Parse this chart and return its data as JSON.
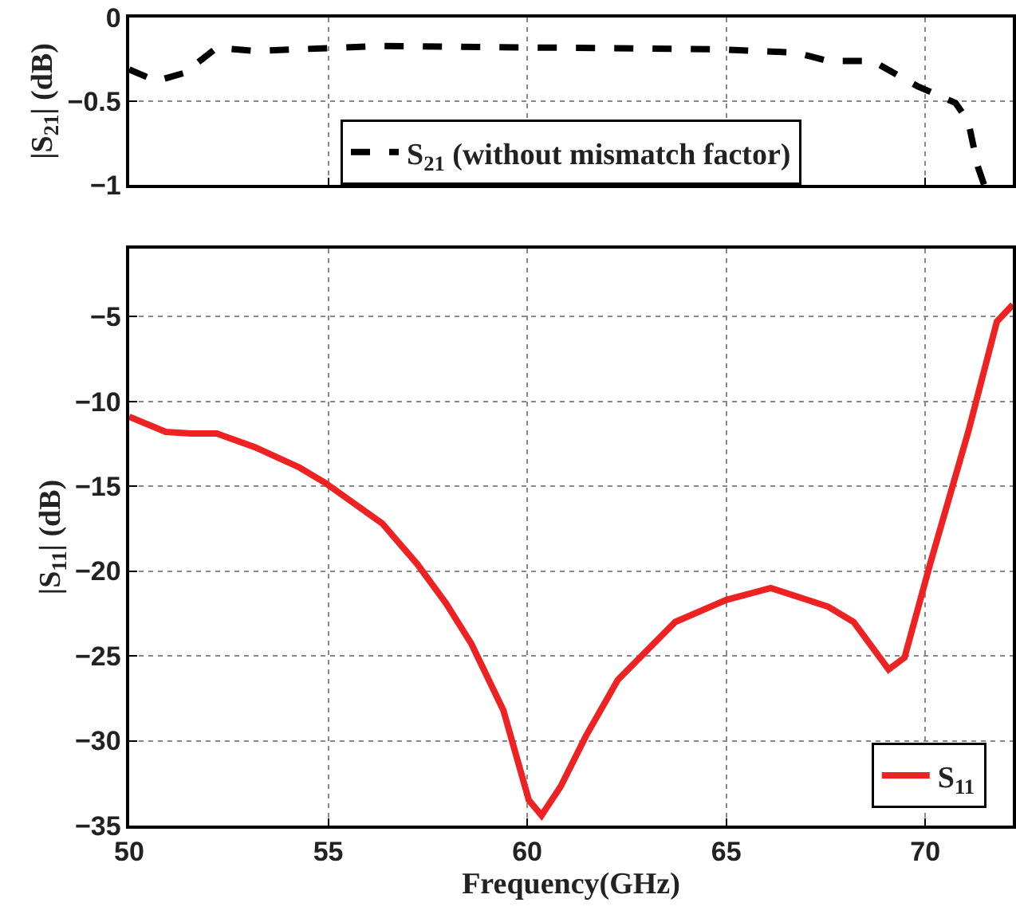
{
  "chart_data": [
    {
      "type": "line",
      "ylabel": "|S$_{21}$| (dB)",
      "xlim": [
        50,
        72.2
      ],
      "xticks": [
        50,
        55,
        60,
        65,
        70
      ],
      "ylim": [
        -1,
        0
      ],
      "yticks": [
        -1,
        -0.5,
        0
      ],
      "grid": true,
      "legend": "bottom",
      "tick_labels": "y",
      "series": [
        {
          "name": "S$_{21}$ (without mismatch factor)",
          "color": "#000000",
          "line_style": "dashed",
          "x": [
            50,
            50.68,
            51.4,
            52.2,
            53.16,
            56.36,
            64.84,
            66.76,
            67.56,
            68.68,
            69.8,
            70.76,
            71.08,
            71.32,
            71.48
          ],
          "values": [
            -0.31,
            -0.38,
            -0.33,
            -0.18,
            -0.2,
            -0.17,
            -0.19,
            -0.21,
            -0.26,
            -0.26,
            -0.41,
            -0.51,
            -0.62,
            -0.89,
            -1.0
          ]
        }
      ]
    },
    {
      "type": "line",
      "xlabel": "Frequency(GHz)",
      "ylabel": "|S$_{11}$| (dB)",
      "xlim": [
        50,
        72.2
      ],
      "xticks": [
        50,
        55,
        60,
        65,
        70
      ],
      "ylim": [
        -35,
        -1
      ],
      "yticks": [
        -35,
        -30,
        -25,
        -20,
        -15,
        -10,
        -5
      ],
      "grid": true,
      "legend": "bottom right",
      "series": [
        {
          "name": "S$_{11}$",
          "color": "#ee2222",
          "line_style": "solid",
          "x": [
            50,
            50.92,
            51.56,
            52.2,
            53.16,
            54.28,
            54.92,
            56.36,
            57.24,
            57.96,
            58.6,
            59.4,
            60.04,
            60.36,
            60.84,
            61.48,
            62.28,
            63.72,
            65.0,
            66.12,
            67.56,
            68.2,
            69.08,
            69.48,
            70.12,
            71.08,
            71.8,
            72.2
          ],
          "values": [
            -10.9,
            -11.8,
            -11.9,
            -11.9,
            -12.7,
            -13.9,
            -14.8,
            -17.2,
            -19.6,
            -21.9,
            -24.3,
            -28.2,
            -33.5,
            -34.4,
            -32.7,
            -29.7,
            -26.4,
            -23.0,
            -21.7,
            -21.0,
            -22.1,
            -23.0,
            -25.8,
            -25.1,
            -19.6,
            -11.8,
            -5.3,
            -4.3
          ]
        }
      ]
    }
  ]
}
